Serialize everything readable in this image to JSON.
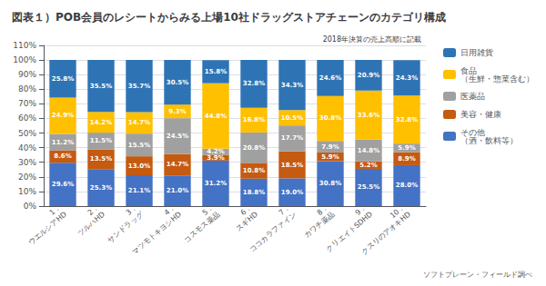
{
  "chart_data": {
    "type": "bar",
    "title": "図表１）POB会員のレシートからみる上場10社ドラッグストアチェーンのカテゴリ構成",
    "subtitle": "2018年決算の売上高順に記載",
    "annotations": [
      "ソフトブレーン・フィールド調べ"
    ],
    "categories": [
      "1．\nウエルシアHD",
      "2．\nツルハHD",
      "3．\nサンドラッグ",
      "4．\nマツモトキヨシHD",
      "5．\nコスモス薬品",
      "6．\nスギHD",
      "7．\nココカラファイン",
      "8．\nカワチ薬品",
      "9．\nクリエイトSDHD",
      "10．\nクスリのアオキHD"
    ],
    "series": [
      {
        "name": "その他\n（酒・飲料等）",
        "color": "#4472C4",
        "values": [
          29.6,
          25.3,
          21.1,
          21.0,
          31.2,
          18.8,
          19.0,
          30.8,
          25.5,
          28.0
        ],
        "value_labels": [
          "29.6%",
          "25.3%",
          "21.1%",
          "21.0%",
          "31.2%",
          "18.8%",
          "19.0%",
          "30.8%",
          "25.5%",
          "28.0%"
        ]
      },
      {
        "name": "美容・健康",
        "color": "#C55A11",
        "values": [
          8.6,
          13.5,
          13.0,
          14.7,
          3.9,
          10.8,
          18.5,
          5.9,
          5.2,
          8.9
        ],
        "value_labels": [
          "8.6%",
          "13.5%",
          "13.0%",
          "14.7%",
          "3.9%",
          "10.8%",
          "18.5%",
          "5.9%",
          "5.2%",
          "8.9%"
        ]
      },
      {
        "name": "医薬品",
        "color": "#A0A0A0",
        "values": [
          11.2,
          11.5,
          15.5,
          24.5,
          4.2,
          20.8,
          17.7,
          7.9,
          14.8,
          5.9
        ],
        "value_labels": [
          "11.2%",
          "11.5%",
          "15.5%",
          "24.5%",
          "4.2%",
          "20.8%",
          "17.7%",
          "7.9%",
          "14.8%",
          "5.9%"
        ]
      },
      {
        "name": "食品\n（生鮮・惣菜含む）",
        "color": "#FFC000",
        "values": [
          24.9,
          14.2,
          14.7,
          9.3,
          44.8,
          16.8,
          10.5,
          30.8,
          33.6,
          32.8
        ],
        "value_labels": [
          "24.9%",
          "14.2%",
          "14.7%",
          "9.3%",
          "44.8%",
          "16.8%",
          "10.5%",
          "30.8%",
          "33.6%",
          "32.8%"
        ]
      },
      {
        "name": "日用雑貨",
        "color": "#2E74B5",
        "values": [
          25.8,
          35.5,
          35.7,
          30.5,
          15.8,
          32.8,
          34.3,
          24.6,
          20.9,
          24.3
        ],
        "value_labels": [
          "25.8%",
          "35.5%",
          "35.7%",
          "30.5%",
          "15.8%",
          "32.8%",
          "34.3%",
          "24.6%",
          "20.9%",
          "24.3%"
        ]
      }
    ],
    "stacked": true,
    "data_labels": true,
    "ylim": [
      0,
      110
    ],
    "yticks": [
      {
        "value": 0,
        "label": "0%"
      },
      {
        "value": 10,
        "label": "10%"
      },
      {
        "value": 20,
        "label": "20%"
      },
      {
        "value": 30,
        "label": "30%"
      },
      {
        "value": 40,
        "label": "40%"
      },
      {
        "value": 50,
        "label": "50%"
      },
      {
        "value": 60,
        "label": "60%"
      },
      {
        "value": 70,
        "label": "70%"
      },
      {
        "value": 80,
        "label": "80%"
      },
      {
        "value": 90,
        "label": "90%"
      },
      {
        "value": 100,
        "label": "100%"
      },
      {
        "value": 110,
        "label": "110%"
      }
    ],
    "grid": true,
    "legend": "right"
  }
}
